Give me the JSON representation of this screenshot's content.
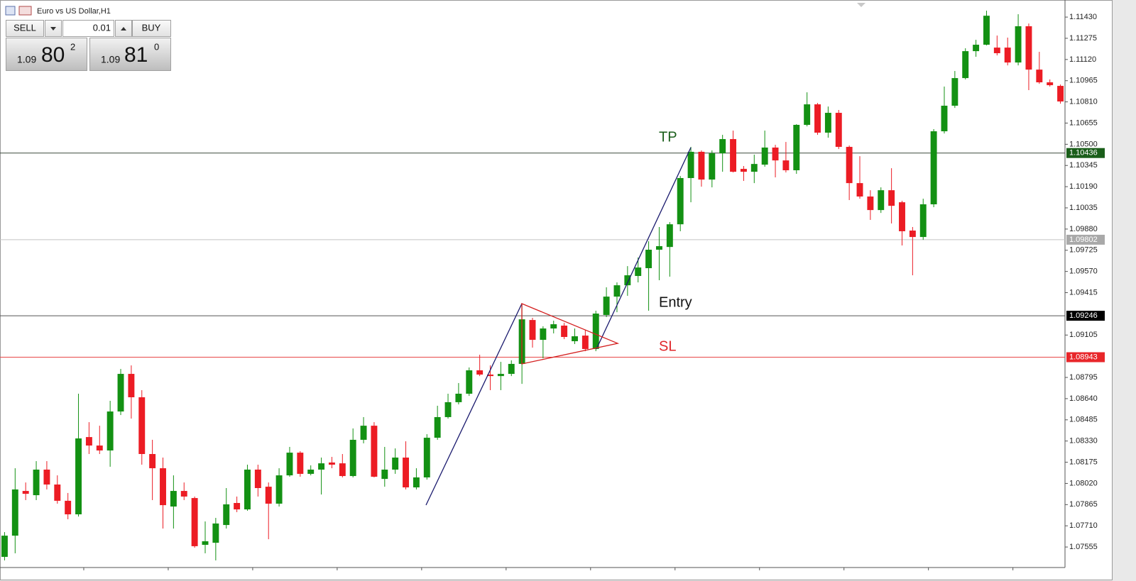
{
  "chart_data": {
    "type": "candlestick",
    "title": "Euro vs US Dollar,H1",
    "up_color": "#139113",
    "down_color": "#ec1c24",
    "ylim": [
      1.07405,
      1.11555
    ],
    "yticks": [
      {
        "value": 1.1143,
        "label": "1.11430"
      },
      {
        "value": 1.11275,
        "label": "1.11275"
      },
      {
        "value": 1.1112,
        "label": "1.11120"
      },
      {
        "value": 1.10965,
        "label": "1.10965"
      },
      {
        "value": 1.1081,
        "label": "1.10810"
      },
      {
        "value": 1.10655,
        "label": "1.10655"
      },
      {
        "value": 1.105,
        "label": "1.10500"
      },
      {
        "value": 1.10345,
        "label": "1.10345"
      },
      {
        "value": 1.1019,
        "label": "1.10190"
      },
      {
        "value": 1.10035,
        "label": "1.10035"
      },
      {
        "value": 1.0988,
        "label": "1.09880"
      },
      {
        "value": 1.09725,
        "label": "1.09725"
      },
      {
        "value": 1.0957,
        "label": "1.09570"
      },
      {
        "value": 1.09415,
        "label": "1.09415"
      },
      {
        "value": 1.09105,
        "label": "1.09105"
      },
      {
        "value": 1.08795,
        "label": "1.08795"
      },
      {
        "value": 1.0864,
        "label": "1.08640"
      },
      {
        "value": 1.08485,
        "label": "1.08485"
      },
      {
        "value": 1.0833,
        "label": "1.08330"
      },
      {
        "value": 1.08175,
        "label": "1.08175"
      },
      {
        "value": 1.0802,
        "label": "1.08020"
      },
      {
        "value": 1.07865,
        "label": "1.07865"
      },
      {
        "value": 1.0771,
        "label": "1.07710"
      },
      {
        "value": 1.07555,
        "label": "1.07555"
      }
    ],
    "open": [
      1.07483,
      1.07638,
      1.07965,
      1.07934,
      1.08121,
      1.08012,
      1.07893,
      1.07794,
      1.08359,
      1.08297,
      1.08261,
      1.08546,
      1.08821,
      1.0865,
      1.08235,
      1.08131,
      1.07851,
      1.07965,
      1.07913,
      1.07571,
      1.07586,
      1.07716,
      1.07877,
      1.0783,
      1.08121,
      1.07996,
      1.07872,
      1.08079,
      1.08245,
      1.0809,
      1.08121,
      1.08173,
      1.08167,
      1.08074,
      1.08339,
      1.08442,
      1.08053,
      1.08121,
      1.08209,
      1.07991,
      1.08064,
      1.08354,
      1.08505,
      1.08614,
      1.08676,
      1.08847,
      1.08816,
      1.08805,
      1.08821,
      1.08894,
      1.09215,
      1.0907,
      1.09153,
      1.09174,
      1.0906,
      1.09101,
      1.09003,
      1.09252,
      1.09386,
      1.09469,
      1.09537,
      1.09594,
      1.09729,
      1.09749,
      1.09915,
      1.10253,
      1.10445,
      1.10242,
      1.10434,
      1.10538,
      1.1032,
      1.10299,
      1.10351,
      1.10476,
      1.10382,
      1.1031,
      1.10642,
      1.10792,
      1.10585,
      1.1073,
      1.10481,
      1.10216,
      1.10118,
      1.10019,
      1.10164,
      1.10076,
      1.09869,
      1.09822,
      1.10061,
      1.10595,
      1.10782,
      1.10984,
      1.11181,
      1.11228,
      1.11207,
      1.11207,
      1.11098,
      1.11363,
      1.11046,
      1.10953,
      1.10927
    ],
    "high": [
      1.07664,
      1.08131,
      1.08027,
      1.08183,
      1.08183,
      1.08079,
      1.0795,
      1.08676,
      1.08468,
      1.08442,
      1.08624,
      1.08857,
      1.08883,
      1.08702,
      1.08339,
      1.08209,
      1.08079,
      1.08027,
      1.07924,
      1.07742,
      1.07768,
      1.07986,
      1.07924,
      1.08157,
      1.08157,
      1.08027,
      1.08131,
      1.08287,
      1.08256,
      1.08152,
      1.08209,
      1.08214,
      1.08235,
      1.08422,
      1.08505,
      1.08468,
      1.08287,
      1.08276,
      1.08328,
      1.08131,
      1.0838,
      1.08588,
      1.08676,
      1.08754,
      1.08868,
      1.08961,
      1.08883,
      1.08909,
      1.0892,
      1.09335,
      1.09231,
      1.09169,
      1.0921,
      1.09194,
      1.09153,
      1.09143,
      1.09283,
      1.09454,
      1.0949,
      1.09609,
      1.09672,
      1.09791,
      1.09895,
      1.09931,
      1.10268,
      1.10481,
      1.10455,
      1.10455,
      1.10569,
      1.106,
      1.10341,
      1.10424,
      1.106,
      1.10496,
      1.10517,
      1.10647,
      1.1088,
      1.10802,
      1.10776,
      1.10751,
      1.10491,
      1.10413,
      1.10164,
      1.10185,
      1.10325,
      1.10087,
      1.09895,
      1.10102,
      1.10611,
      1.10922,
      1.11036,
      1.11202,
      1.11264,
      1.11477,
      1.11295,
      1.1128,
      1.11451,
      1.11383,
      1.11176,
      1.10974,
      1.10937
    ],
    "low": [
      1.07457,
      1.07509,
      1.07898,
      1.07898,
      1.07976,
      1.07872,
      1.07758,
      1.07778,
      1.08235,
      1.08235,
      1.08142,
      1.0852,
      1.08494,
      1.08157,
      1.07898,
      1.0769,
      1.0769,
      1.07898,
      1.0755,
      1.07509,
      1.07457,
      1.0769,
      1.0781,
      1.0782,
      1.07924,
      1.07612,
      1.07851,
      1.08069,
      1.08069,
      1.08079,
      1.07939,
      1.08131,
      1.08064,
      1.08064,
      1.08313,
      1.08064,
      1.07996,
      1.0809,
      1.07976,
      1.07976,
      1.08048,
      1.08339,
      1.08494,
      1.08598,
      1.0866,
      1.08805,
      1.08702,
      1.08702,
      1.08805,
      1.08748,
      1.09013,
      1.08935,
      1.09117,
      1.09075,
      1.09039,
      1.08987,
      1.08987,
      1.09236,
      1.09272,
      1.09392,
      1.0949,
      1.09283,
      1.09506,
      1.09532,
      1.09864,
      1.10076,
      1.1019,
      1.10185,
      1.10299,
      1.10294,
      1.10232,
      1.10216,
      1.10336,
      1.10258,
      1.10294,
      1.10284,
      1.10631,
      1.10569,
      1.10548,
      1.10465,
      1.10092,
      1.10102,
      1.09947,
      1.09998,
      1.09921,
      1.0976,
      1.09542,
      1.09801,
      1.1004,
      1.10579,
      1.10766,
      1.10974,
      1.1114,
      1.11223,
      1.1115,
      1.11077,
      1.11077,
      1.10896,
      1.10942,
      1.10922,
      1.10797
    ],
    "close": [
      1.07638,
      1.07976,
      1.07944,
      1.08121,
      1.08012,
      1.07893,
      1.07794,
      1.08349,
      1.08297,
      1.08261,
      1.08546,
      1.08821,
      1.0865,
      1.08235,
      1.08131,
      1.07861,
      1.07965,
      1.07924,
      1.07561,
      1.07597,
      1.07727,
      1.07867,
      1.0783,
      1.08121,
      1.07986,
      1.07872,
      1.08079,
      1.08245,
      1.0809,
      1.08121,
      1.08167,
      1.08157,
      1.08074,
      1.08339,
      1.08442,
      1.08069,
      1.08121,
      1.08209,
      1.07991,
      1.08064,
      1.08354,
      1.08505,
      1.08614,
      1.08676,
      1.08847,
      1.08816,
      1.08805,
      1.08821,
      1.08894,
      1.0922,
      1.0907,
      1.09153,
      1.09184,
      1.09091,
      1.09096,
      1.09003,
      1.09262,
      1.09386,
      1.09469,
      1.09542,
      1.09599,
      1.09729,
      1.09755,
      1.09915,
      1.10253,
      1.10445,
      1.10242,
      1.10434,
      1.10538,
      1.10299,
      1.10299,
      1.10356,
      1.10476,
      1.10382,
      1.1031,
      1.10642,
      1.10792,
      1.10585,
      1.1073,
      1.10481,
      1.10216,
      1.10118,
      1.10019,
      1.10164,
      1.1005,
      1.09864,
      1.09822,
      1.10061,
      1.10595,
      1.10782,
      1.10984,
      1.11181,
      1.11228,
      1.1144,
      1.11166,
      1.11098,
      1.11363,
      1.11046,
      1.10953,
      1.10932,
      1.10813
    ],
    "levels": [
      {
        "value": 1.10436,
        "line_color": "#3d4a3d",
        "label_color": "#1a5e1a"
      },
      {
        "value": 1.09802,
        "line_color": "#c4c4c4",
        "label_color": "#a9a9a9"
      },
      {
        "value": 1.09246,
        "line_color": "#555555",
        "label_color": "#000000"
      },
      {
        "value": 1.08943,
        "line_color": "#e84848",
        "label_color": "#e8262a"
      }
    ],
    "annotations": [
      {
        "text": "TP",
        "color": "#1a5e1a"
      },
      {
        "text": "Entry",
        "color": "#111111"
      },
      {
        "text": "SL",
        "color": "#e0262a"
      }
    ]
  },
  "trade_panel": {
    "sell": "SELL",
    "buy": "BUY",
    "lot": "0.01",
    "bid": {
      "big": "1.09",
      "pips": "80",
      "point": "2"
    },
    "ask": {
      "big": "1.09",
      "pips": "81",
      "point": "0"
    }
  }
}
